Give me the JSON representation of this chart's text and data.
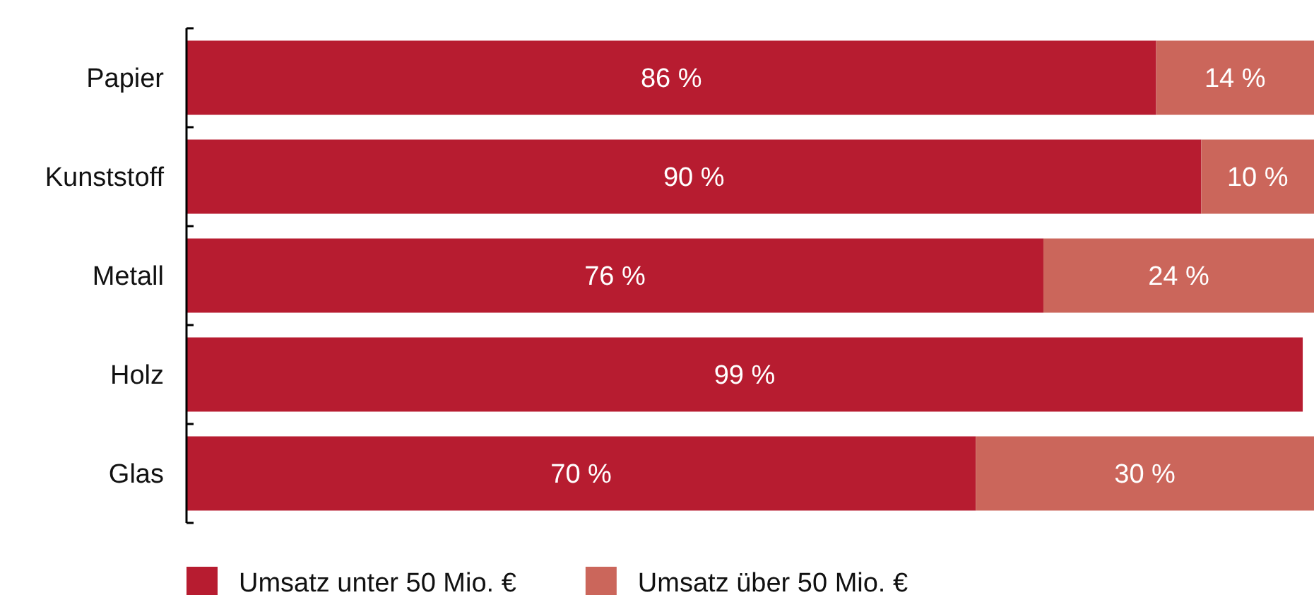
{
  "chart_data": {
    "type": "bar",
    "orientation": "horizontal",
    "stacked": true,
    "categories": [
      "Papier",
      "Kunststoff",
      "Metall",
      "Holz",
      "Glas"
    ],
    "series": [
      {
        "name": "Umsatz unter 50 Mio. €",
        "color": "#b71c30",
        "values": [
          86,
          90,
          76,
          99,
          70
        ],
        "value_labels": [
          "86 %",
          "90 %",
          "76 %",
          "99 %",
          "70 %"
        ]
      },
      {
        "name": "Umsatz über 50 Mio. €",
        "color": "#cb665b",
        "values": [
          14,
          10,
          24,
          null,
          30
        ],
        "value_labels": [
          "14 %",
          "10 %",
          "24 %",
          null,
          "30 %"
        ]
      }
    ],
    "legend": "bottom"
  }
}
